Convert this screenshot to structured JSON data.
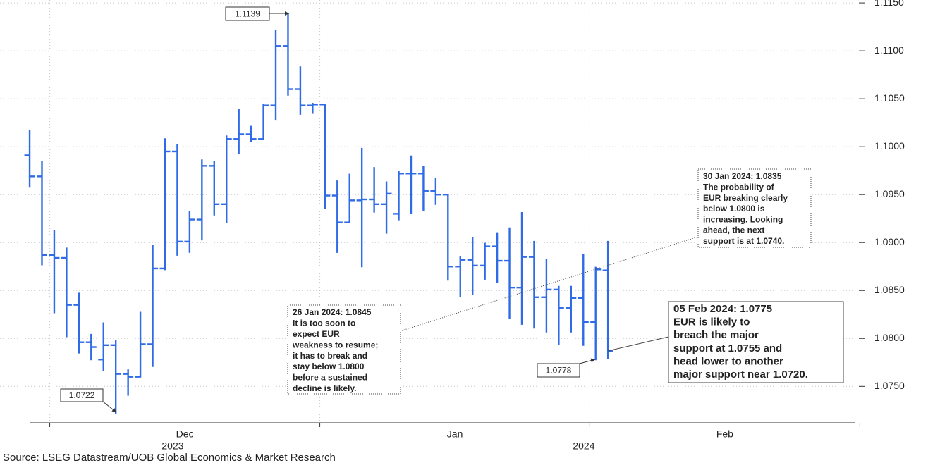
{
  "chart_data": {
    "type": "ohlc",
    "color": "#2f6be6",
    "x": [
      0,
      1,
      2,
      3,
      4,
      5,
      6,
      7,
      8,
      9,
      10,
      11,
      12,
      13,
      14,
      15,
      16,
      17,
      18,
      19,
      20,
      21,
      22,
      23,
      24,
      25,
      26,
      27,
      28,
      29,
      30,
      31,
      32,
      33,
      34,
      35,
      36,
      37,
      38,
      39,
      40,
      41,
      42,
      43,
      44,
      45,
      46,
      47
    ],
    "open": [
      1.0991,
      1.0969,
      1.0887,
      1.0884,
      1.0835,
      1.0796,
      1.0778,
      1.0793,
      1.0763,
      1.076,
      1.0794,
      1.0873,
      1.0995,
      1.0901,
      1.0924,
      1.098,
      1.094,
      1.1008,
      1.1013,
      1.1008,
      1.1043,
      1.1105,
      1.106,
      1.1043,
      1.1044,
      1.0949,
      1.0921,
      1.0944,
      1.0945,
      1.094,
      1.093,
      1.0972,
      1.0972,
      1.0954,
      1.095,
      1.0875,
      1.0882,
      1.0876,
      1.0896,
      1.0881,
      1.0853,
      1.0885,
      1.0843,
      1.0851,
      1.0832,
      1.0842,
      1.0817,
      1.0871
    ],
    "high": [
      1.1017,
      1.0984,
      1.0912,
      1.0894,
      1.0847,
      1.0804,
      1.0816,
      1.0798,
      1.0767,
      1.0827,
      1.0897,
      1.1008,
      1.1002,
      1.0932,
      1.0986,
      1.0984,
      1.1011,
      1.1039,
      1.1021,
      1.1044,
      1.1121,
      1.1139,
      1.1083,
      1.1045,
      1.1044,
      1.0964,
      1.0971,
      1.0998,
      1.0978,
      1.0963,
      1.0974,
      1.099,
      1.0979,
      1.0967,
      1.095,
      1.0885,
      1.0905,
      1.0899,
      1.091,
      1.0915,
      1.0931,
      1.0901,
      1.0882,
      1.0854,
      1.0854,
      1.0887,
      1.0874,
      1.0901
    ],
    "low": [
      1.0958,
      1.0877,
      1.0827,
      1.0802,
      1.0785,
      1.0778,
      1.0767,
      1.0722,
      1.0741,
      1.076,
      1.0771,
      1.0872,
      1.0887,
      1.089,
      1.0903,
      1.0929,
      1.0921,
      1.0993,
      1.1006,
      1.1008,
      1.1028,
      1.1054,
      1.1034,
      1.1035,
      1.0936,
      1.089,
      1.0921,
      1.0875,
      1.0932,
      1.091,
      1.0924,
      1.0931,
      1.0934,
      1.094,
      1.0861,
      1.0844,
      1.0846,
      1.0862,
      1.0859,
      1.0821,
      1.0815,
      1.0811,
      1.0807,
      1.0794,
      1.0807,
      1.0793,
      1.0778,
      1.0779
    ],
    "close": [
      1.0969,
      1.0887,
      1.0884,
      1.0835,
      1.0796,
      1.0791,
      1.0793,
      1.0763,
      1.076,
      1.0794,
      1.0873,
      1.0995,
      1.0901,
      1.0924,
      1.098,
      1.094,
      1.1008,
      1.1013,
      1.1008,
      1.1043,
      1.1105,
      1.106,
      1.1043,
      1.1044,
      1.0949,
      1.0921,
      1.0944,
      1.0945,
      1.094,
      1.0951,
      1.0972,
      1.0972,
      1.0954,
      1.095,
      1.0875,
      1.0882,
      1.0876,
      1.0896,
      1.0881,
      1.0853,
      1.0885,
      1.0843,
      1.0851,
      1.0832,
      1.0842,
      1.0817,
      1.0872,
      1.0787
    ],
    "xlim": [
      -2.41,
      67.05
    ],
    "ylim": [
      1.0712,
      1.1153
    ],
    "xticks": [
      {
        "value": 12.61,
        "label": "Dec"
      },
      {
        "value": 34.56,
        "label": "Jan"
      },
      {
        "value": 56.5,
        "label": "Feb"
      }
    ],
    "year_labels": [
      {
        "value": 11.63,
        "label": "2023"
      },
      {
        "value": 45.04,
        "label": "2024"
      }
    ],
    "yticks": [
      {
        "value": 1.115,
        "label": "1.1150"
      },
      {
        "value": 1.11,
        "label": "1.1100"
      },
      {
        "value": 1.105,
        "label": "1.1050"
      },
      {
        "value": 1.1,
        "label": "1.1000"
      },
      {
        "value": 1.095,
        "label": "1.0950"
      },
      {
        "value": 1.09,
        "label": "1.0900"
      },
      {
        "value": 1.085,
        "label": "1.0850"
      },
      {
        "value": 1.08,
        "label": "1.0800"
      },
      {
        "value": 1.075,
        "label": "1.0750"
      }
    ],
    "grid": true,
    "point_labels": [
      "1.1139",
      "1.0722",
      "1.0778"
    ],
    "annotations": [
      {
        "lines": [
          "26 Jan 2024: 1.0845",
          "It is too soon to",
          "expect EUR",
          "weakness to resume;",
          "it has to break and",
          "stay below 1.0800",
          "before a sustained",
          "decline is likely."
        ]
      },
      {
        "lines": [
          "30 Jan 2024: 1.0835",
          "The probability of",
          "EUR breaking clearly",
          "below 1.0800 is",
          "increasing. Looking",
          "ahead, the next",
          "support is at 1.0740."
        ]
      },
      {
        "lines": [
          "05 Feb 2024: 1.0775",
          "EUR is likely to",
          "breach the major",
          "support at 1.0755 and",
          "head lower to another",
          "major support near 1.0720."
        ]
      }
    ],
    "source": "Source: LSEG Datastream/UOB Global Economics & Market Research"
  }
}
